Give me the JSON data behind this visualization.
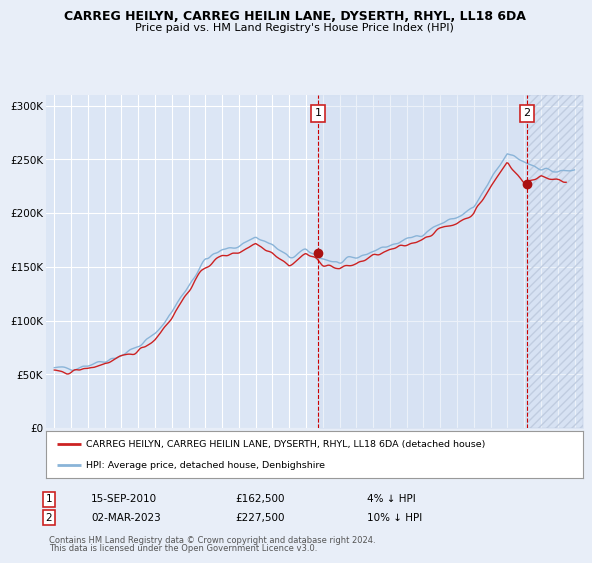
{
  "title": "CARREG HEILYN, CARREG HEILIN LANE, DYSERTH, RHYL, LL18 6DA",
  "subtitle": "Price paid vs. HM Land Registry's House Price Index (HPI)",
  "ylabel_ticks": [
    "£0",
    "£50K",
    "£100K",
    "£150K",
    "£200K",
    "£250K",
    "£300K"
  ],
  "ytick_values": [
    0,
    50000,
    100000,
    150000,
    200000,
    250000,
    300000
  ],
  "ylim": [
    0,
    310000
  ],
  "xlim": [
    1994.5,
    2026.5
  ],
  "transaction1_date": "15-SEP-2010",
  "transaction1_price": 162500,
  "transaction1_label": "4% ↓ HPI",
  "transaction1_year": 2010.71,
  "transaction2_date": "02-MAR-2023",
  "transaction2_price": 227500,
  "transaction2_label": "10% ↓ HPI",
  "transaction2_year": 2023.17,
  "legend1_label": "CARREG HEILYN, CARREG HEILIN LANE, DYSERTH, RHYL, LL18 6DA (detached house)",
  "legend2_label": "HPI: Average price, detached house, Denbighshire",
  "footer1": "Contains HM Land Registry data © Crown copyright and database right 2024.",
  "footer2": "This data is licensed under the Open Government Licence v3.0.",
  "background_color": "#e8eef8",
  "plot_bg_color": "#dce6f5",
  "plot_bg_color_right": "#ccd8ee",
  "grid_color": "#ffffff",
  "hpi_line_color": "#8ab4d8",
  "price_line_color": "#cc2222",
  "vline_color": "#cc0000",
  "annotation_box_color": "#cc2222",
  "dot_color": "#aa1111"
}
